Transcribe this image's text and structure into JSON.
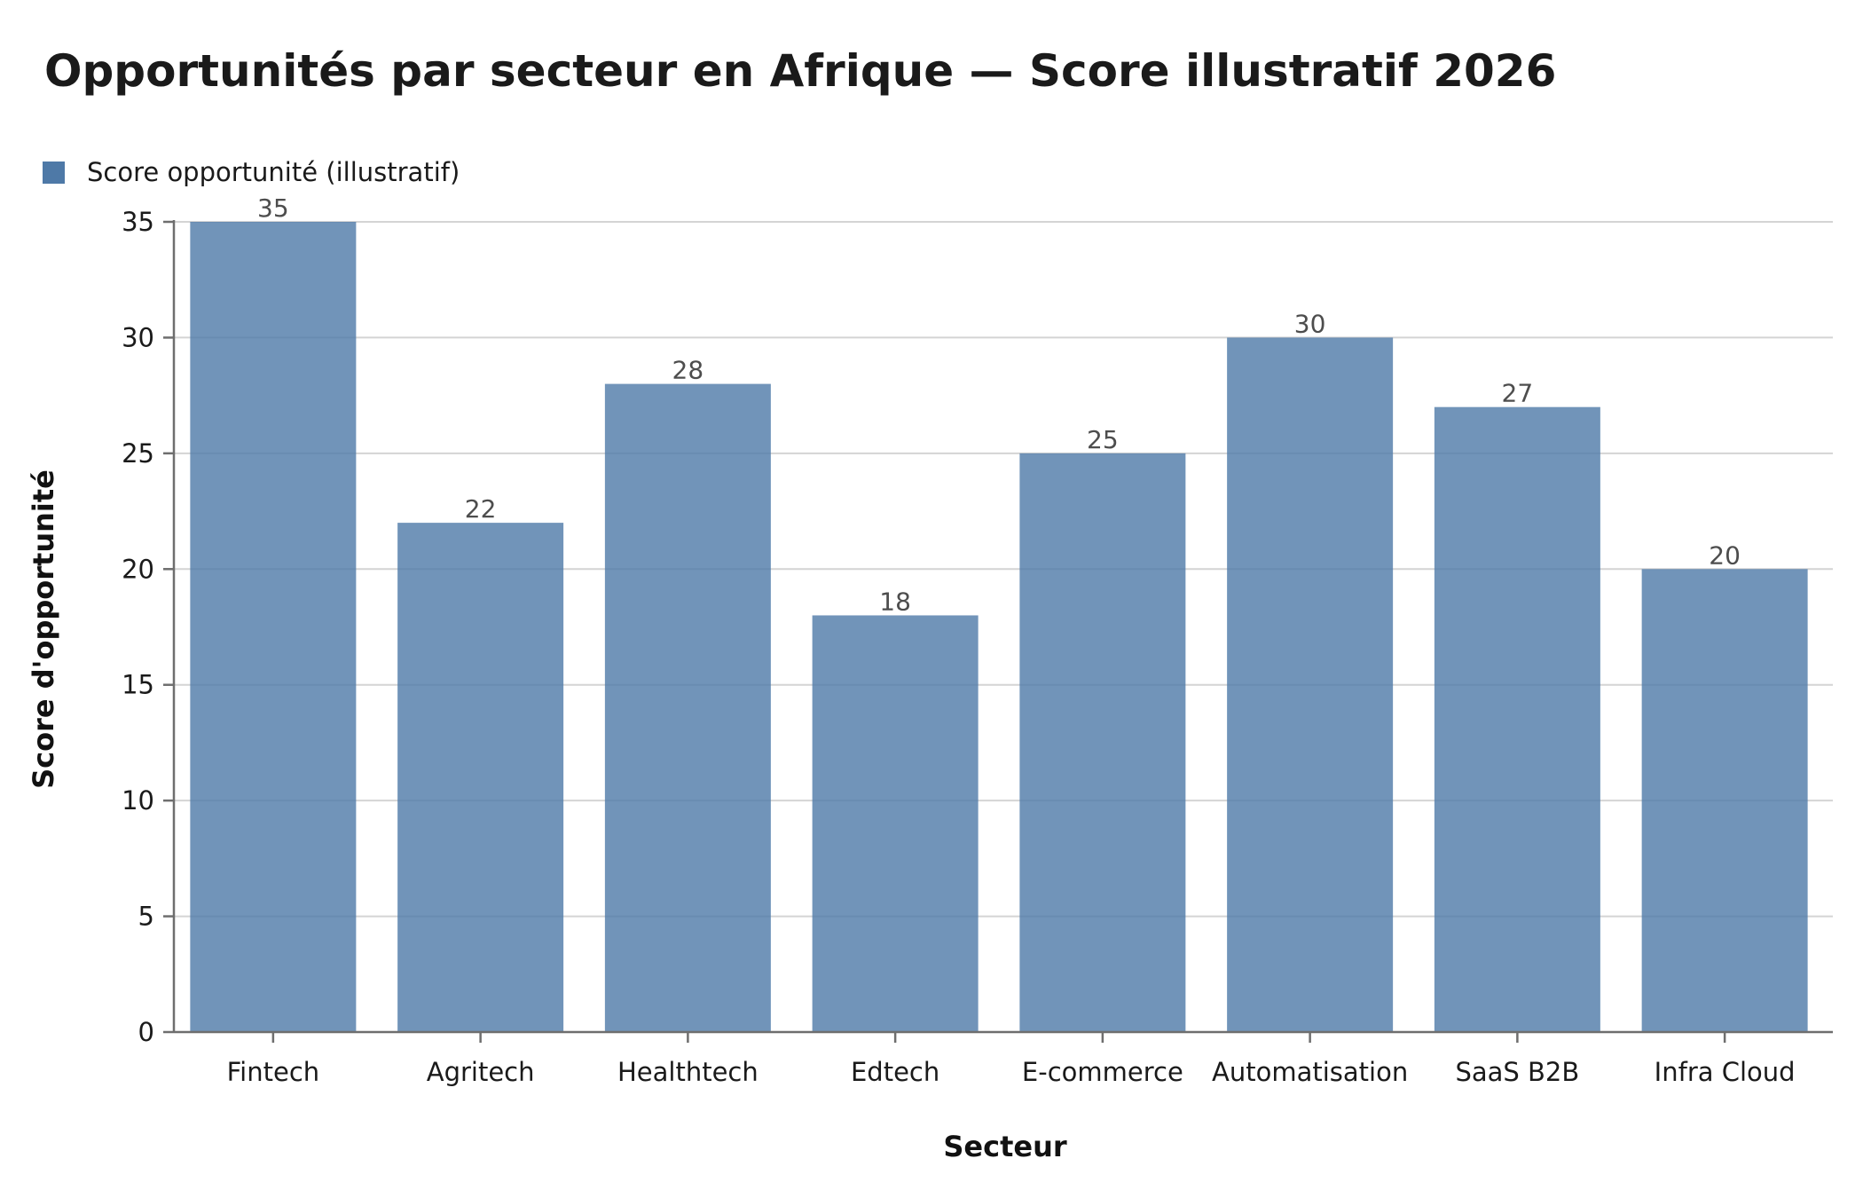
{
  "chart_data": {
    "type": "bar",
    "title": "Opportunités par secteur en Afrique — Score illustratif 2026",
    "xlabel": "Secteur",
    "ylabel": "Score d'opportunité",
    "categories": [
      "Fintech",
      "Agritech",
      "Healthtech",
      "Edtech",
      "E-commerce",
      "Automatisation",
      "SaaS B2B",
      "Infra Cloud"
    ],
    "series": [
      {
        "name": "Score opportunité (illustratif)",
        "values": [
          35,
          22,
          28,
          18,
          25,
          30,
          27,
          20
        ],
        "color": "#4e79a7"
      }
    ],
    "ylim": [
      0,
      35
    ],
    "yticks": [
      0,
      5,
      10,
      15,
      20,
      25,
      30,
      35
    ],
    "grid": true,
    "legend_position": "top-left",
    "data_labels": true
  }
}
